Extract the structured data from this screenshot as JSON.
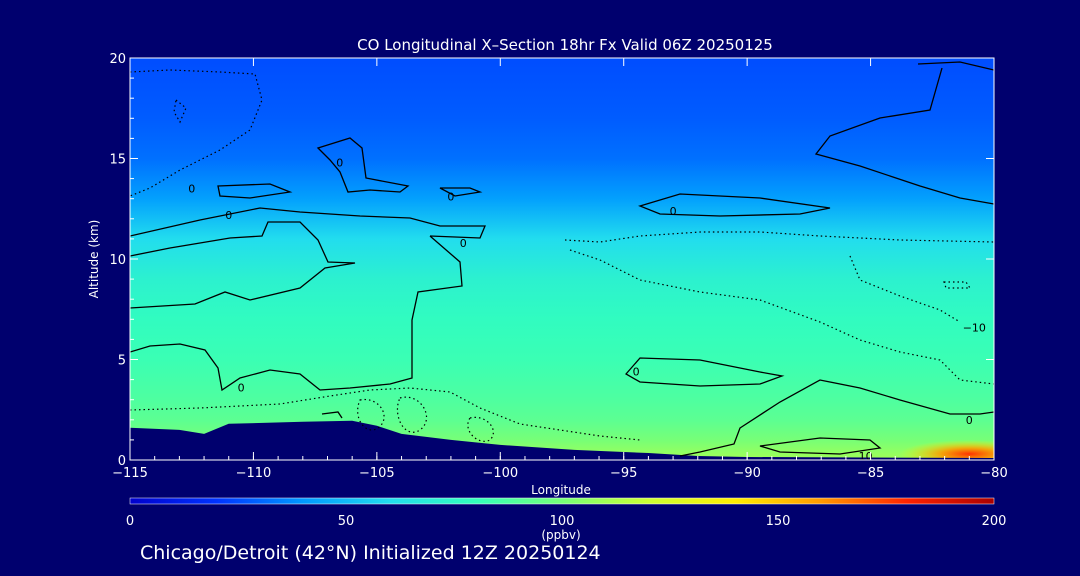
{
  "chart_data": {
    "type": "heatmap",
    "title": "CO Longitudinal X–Section 18hr  Fx Valid 06Z 20250125",
    "xlabel": "Longitude",
    "ylabel": "Altitude (km)",
    "xlim": [
      -115,
      -80
    ],
    "ylim": [
      0,
      20
    ],
    "x_ticks": [
      -115,
      -110,
      -105,
      -100,
      -95,
      -90,
      -85,
      -80
    ],
    "x_tick_labels": [
      "−115",
      "−110",
      "−105",
      "−100",
      "−95",
      "−90",
      "−85",
      "−80"
    ],
    "y_ticks": [
      0,
      5,
      10,
      15,
      20
    ],
    "colorbar": {
      "label": "(ppbv)",
      "range": [
        0,
        200
      ],
      "ticks": [
        0,
        50,
        100,
        150,
        200
      ],
      "colors": [
        "#0000cc",
        "#0033ff",
        "#0099ff",
        "#22ddee",
        "#33ffbb",
        "#77ff77",
        "#ccff33",
        "#ffee00",
        "#ff9900",
        "#ff2200",
        "#aa0000"
      ]
    },
    "co_profile_ppbv": [
      {
        "altitude_km": 0,
        "value": 110
      },
      {
        "altitude_km": 1,
        "value": 100
      },
      {
        "altitude_km": 2,
        "value": 92
      },
      {
        "altitude_km": 3,
        "value": 88
      },
      {
        "altitude_km": 5,
        "value": 82
      },
      {
        "altitude_km": 7,
        "value": 78
      },
      {
        "altitude_km": 9,
        "value": 72
      },
      {
        "altitude_km": 11,
        "value": 60
      },
      {
        "altitude_km": 13,
        "value": 42
      },
      {
        "altitude_km": 15,
        "value": 32
      },
      {
        "altitude_km": 17,
        "value": 28
      },
      {
        "altitude_km": 20,
        "value": 25
      }
    ],
    "surface_hotspot": {
      "longitude": -81,
      "altitude_km": 0.3,
      "value": 150
    },
    "terrain": [
      {
        "lon": -115,
        "alt_km": 1.6
      },
      {
        "lon": -113,
        "alt_km": 1.5
      },
      {
        "lon": -112,
        "alt_km": 1.3
      },
      {
        "lon": -111,
        "alt_km": 1.8
      },
      {
        "lon": -108,
        "alt_km": 1.9
      },
      {
        "lon": -106,
        "alt_km": 1.95
      },
      {
        "lon": -105,
        "alt_km": 1.7
      },
      {
        "lon": -104,
        "alt_km": 1.3
      },
      {
        "lon": -102,
        "alt_km": 1.0
      },
      {
        "lon": -100,
        "alt_km": 0.75
      },
      {
        "lon": -97,
        "alt_km": 0.5
      },
      {
        "lon": -94,
        "alt_km": 0.35
      },
      {
        "lon": -92,
        "alt_km": 0.2
      },
      {
        "lon": -90,
        "alt_km": 0.15
      },
      {
        "lon": -80,
        "alt_km": 0.1
      }
    ],
    "contour_labels": [
      {
        "text": "0",
        "lon": -112.5,
        "alt_km": 13.5
      },
      {
        "text": "0",
        "lon": -111,
        "alt_km": 12.2
      },
      {
        "text": "0",
        "lon": -110.5,
        "alt_km": 3.6
      },
      {
        "text": "0",
        "lon": -106.5,
        "alt_km": 14.8
      },
      {
        "text": "0",
        "lon": -102,
        "alt_km": 13.1
      },
      {
        "text": "0",
        "lon": -101.5,
        "alt_km": 10.8
      },
      {
        "text": "0",
        "lon": -93,
        "alt_km": 12.4
      },
      {
        "text": "0",
        "lon": -94.5,
        "alt_km": 4.4
      },
      {
        "text": "0",
        "lon": -81,
        "alt_km": 2.0
      },
      {
        "text": "0",
        "lon": -79.5,
        "alt_km": 19.9
      },
      {
        "text": "−10",
        "lon": -80.8,
        "alt_km": 6.6
      },
      {
        "text": "10",
        "lon": -85.2,
        "alt_km": 0.2
      }
    ]
  },
  "footer": "Chicago/Detroit (42°N) Initialized 12Z 20250124"
}
